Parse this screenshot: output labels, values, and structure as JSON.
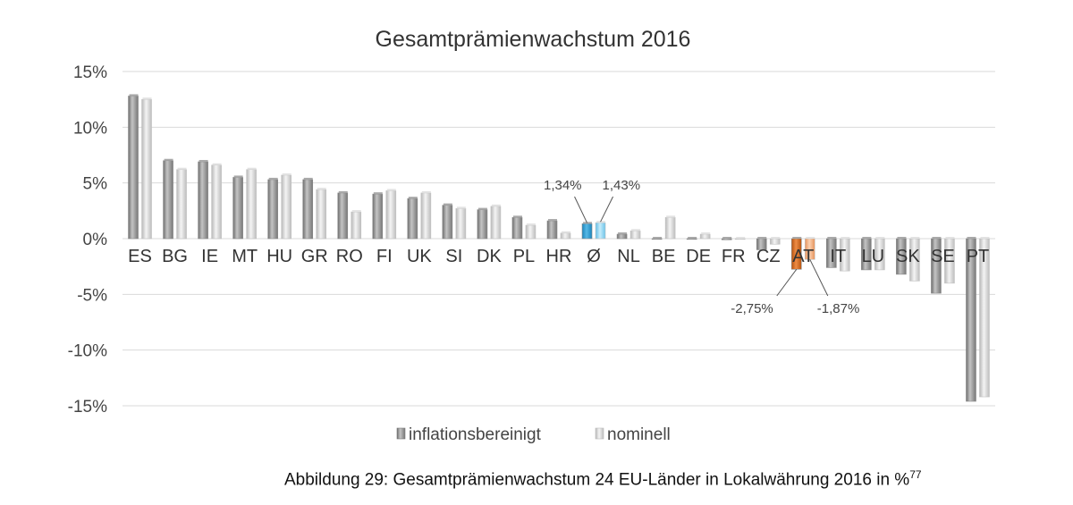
{
  "chart_data": {
    "type": "bar",
    "title": "Gesamtprämienwachstum 2016",
    "xlabel": "",
    "ylabel": "",
    "ylim": [
      -15,
      15
    ],
    "yticks": [
      15,
      10,
      5,
      0,
      -5,
      -10,
      -15
    ],
    "ytick_labels": [
      "15%",
      "10%",
      "5%",
      "0%",
      "-5%",
      "-10%",
      "-15%"
    ],
    "grid": true,
    "legend_position": "bottom",
    "categories": [
      "ES",
      "BG",
      "IE",
      "MT",
      "HU",
      "GR",
      "RO",
      "FI",
      "UK",
      "SI",
      "DK",
      "PL",
      "HR",
      "Ø",
      "NL",
      "BE",
      "DE",
      "FR",
      "CZ",
      "AT",
      "IT",
      "LU",
      "SK",
      "SE",
      "PT"
    ],
    "series": [
      {
        "name": "inflationsbereinigt",
        "color": "#8c8c8c",
        "values": [
          12.8,
          7.0,
          6.9,
          5.5,
          5.3,
          5.3,
          4.1,
          4.0,
          3.6,
          3.0,
          2.6,
          1.9,
          1.6,
          1.34,
          0.4,
          0.0,
          0.0,
          -0.1,
          -1.0,
          -2.75,
          -2.6,
          -2.8,
          -3.2,
          -4.9,
          -14.6
        ]
      },
      {
        "name": "nominell",
        "color": "#d0d0d0",
        "values": [
          12.5,
          6.2,
          6.6,
          6.2,
          5.7,
          4.4,
          2.4,
          4.3,
          4.1,
          2.7,
          2.9,
          1.2,
          0.5,
          1.43,
          0.7,
          1.9,
          0.4,
          0.0,
          -0.5,
          -1.87,
          -2.9,
          -2.8,
          -3.8,
          -4.0,
          -14.2
        ]
      }
    ],
    "highlights": {
      "Ø": {
        "colors": [
          "#2f9fd6",
          "#8fd3f0"
        ]
      },
      "AT": {
        "colors": [
          "#d86a1f",
          "#f4b07c"
        ]
      }
    },
    "annotations": [
      {
        "category": "Ø",
        "series": 0,
        "label": "1,34%"
      },
      {
        "category": "Ø",
        "series": 1,
        "label": "1,43%"
      },
      {
        "category": "AT",
        "series": 0,
        "label": "-2,75%"
      },
      {
        "category": "AT",
        "series": 1,
        "label": "-1,87%"
      }
    ]
  },
  "caption": {
    "text": "Abbildung 29: Gesamtprämienwachstum 24 EU-Länder in Lokalwährung 2016 in %",
    "footnote": "77"
  }
}
